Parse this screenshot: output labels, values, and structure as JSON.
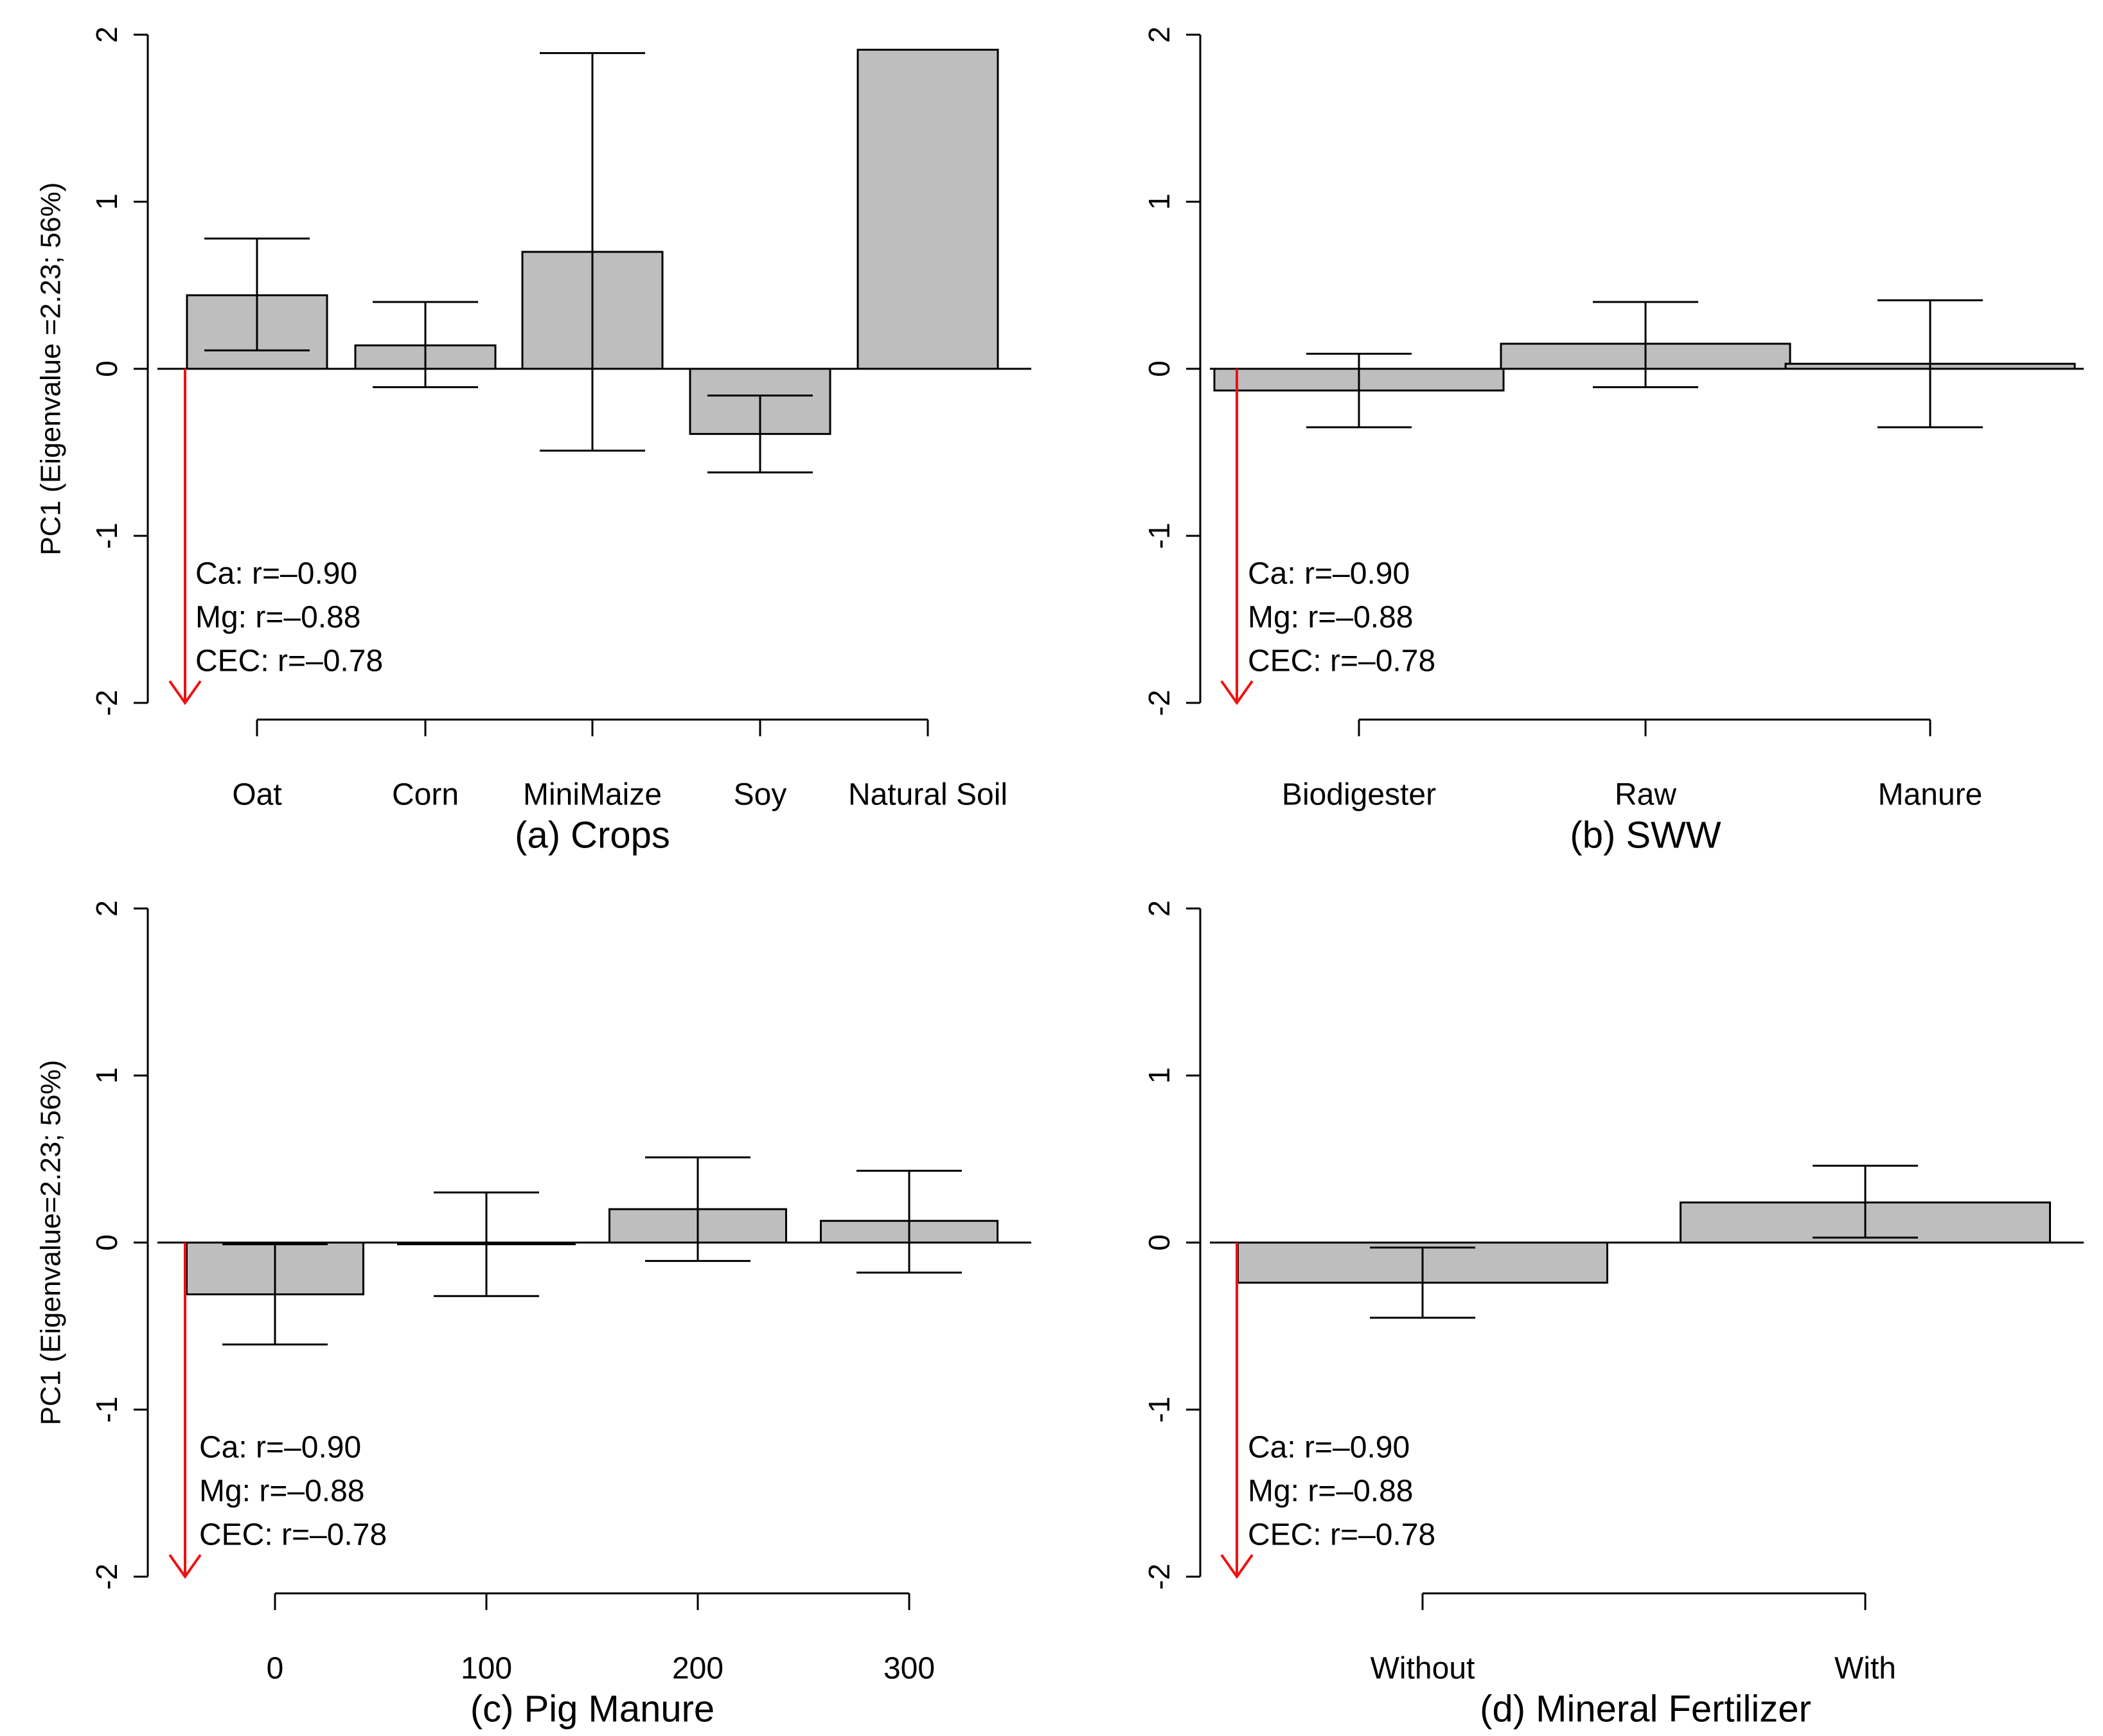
{
  "figure": {
    "ylabel_top": "PC1 (Eigenvalue =2.23; 56%)",
    "ylabel_bottom": "PC1 (Eigenvalue=2.23; 56%)",
    "annotation_lines": [
      "Ca: r=–0.90",
      "Mg: r=–0.88",
      "CEC: r=–0.78"
    ],
    "colors": {
      "bar_fill": "#bebebe",
      "arrow": "#ee1111",
      "line": "#000000"
    }
  },
  "chart_data": [
    {
      "type": "bar",
      "title": "(a) Crops",
      "categories": [
        "Oat",
        "Corn",
        "MiniMaize",
        "Soy",
        "Natural Soil"
      ],
      "values": [
        0.44,
        0.14,
        0.7,
        -0.39,
        1.91
      ],
      "error_low": [
        0.11,
        -0.11,
        -0.49,
        -0.62,
        null
      ],
      "error_high": [
        0.78,
        0.4,
        1.89,
        -0.16,
        null
      ],
      "ylim": [
        -2,
        2
      ],
      "yticks": [
        "-2",
        "-1",
        "0",
        "1",
        "2"
      ],
      "ylabel": "PC1 (Eigenvalue =2.23; 56%)"
    },
    {
      "type": "bar",
      "title": "(b) SWW",
      "categories": [
        "Biodigester",
        "Raw",
        "Manure"
      ],
      "values": [
        -0.13,
        0.15,
        0.03
      ],
      "error_low": [
        -0.35,
        -0.11,
        -0.35
      ],
      "error_high": [
        0.09,
        0.4,
        0.41
      ],
      "ylim": [
        -2,
        2
      ],
      "yticks": [
        "-2",
        "-1",
        "0",
        "1",
        "2"
      ],
      "ylabel": ""
    },
    {
      "type": "bar",
      "title": "(c) Pig Manure",
      "categories": [
        "0",
        "100",
        "200",
        "300"
      ],
      "values": [
        -0.31,
        -0.01,
        0.2,
        0.13
      ],
      "error_low": [
        -0.61,
        -0.32,
        -0.11,
        -0.18
      ],
      "error_high": [
        -0.01,
        0.3,
        0.51,
        0.43
      ],
      "ylim": [
        -2,
        2
      ],
      "yticks": [
        "-2",
        "-1",
        "0",
        "1",
        "2"
      ],
      "ylabel": "PC1 (Eigenvalue=2.23; 56%)"
    },
    {
      "type": "bar",
      "title": "(d) Mineral Fertilizer",
      "categories": [
        "Without",
        "With"
      ],
      "values": [
        -0.24,
        0.24
      ],
      "error_low": [
        -0.45,
        0.03
      ],
      "error_high": [
        -0.03,
        0.46
      ],
      "ylim": [
        -2,
        2
      ],
      "yticks": [
        "-2",
        "-1",
        "0",
        "1",
        "2"
      ],
      "ylabel": ""
    }
  ]
}
